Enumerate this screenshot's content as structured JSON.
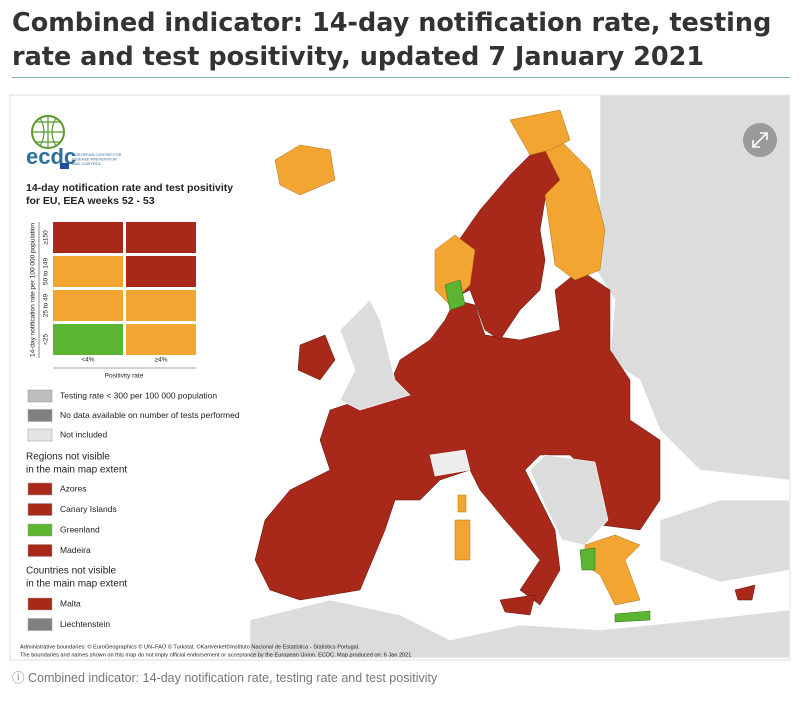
{
  "title": "Combined indicator: 14-day notification rate, testing rate and test positivity, updated 7 January 2021",
  "map": {
    "logo": {
      "name": "ecdc",
      "subtitle": [
        "EUROPEAN CENTRE FOR",
        "DISEASE PREVENTION",
        "AND CONTROL"
      ]
    },
    "legend_title": [
      "14-day notification rate and test positivity",
      "for EU, EEA weeks 52 - 53"
    ],
    "y_axis_label": "14-day notification rate per 100 000 population",
    "y_categories": [
      "≥150",
      "50 to 149",
      "25 to 49",
      "<25"
    ],
    "x_axis_label": "Positivity rate",
    "x_categories": [
      "<4%",
      "≥4%"
    ],
    "matrix_colors": [
      [
        "#a8281a",
        "#a8281a"
      ],
      [
        "#f2a531",
        "#a8281a"
      ],
      [
        "#f2a531",
        "#f2a531"
      ],
      [
        "#5cb531",
        "#f2a531"
      ]
    ],
    "other_legend": [
      {
        "label": "Testing rate < 300 per 100 000 population",
        "color": "#bdbdbd"
      },
      {
        "label": "No data available on number of tests performed",
        "color": "#7f7f7f"
      },
      {
        "label": "Not included",
        "color": "#e4e4e4"
      }
    ],
    "regions_heading": [
      "Regions not visible",
      "in the main map extent"
    ],
    "regions": [
      {
        "label": "Azores",
        "color": "#a8281a"
      },
      {
        "label": "Canary Islands",
        "color": "#a8281a"
      },
      {
        "label": "Greenland",
        "color": "#5cb531"
      },
      {
        "label": "Madeira",
        "color": "#a8281a"
      }
    ],
    "countries_heading": [
      "Countries not visible",
      "in the main map extent"
    ],
    "countries": [
      {
        "label": "Malta",
        "color": "#a8281a"
      },
      {
        "label": "Liechtenstein",
        "color": "#7f7f7f"
      }
    ],
    "footnote": [
      "Administrative boundaries: © EuroGeographics © UN–FAO © Turkstat. ©Kartverket©Instituto Nacional de Estatística - Statistics Portugal.",
      "The boundaries and names shown on this map do not imply official endorsement or acceptance by the European Union. ECDC. Map produced on: 6 Jan 2021"
    ]
  },
  "caption": "Combined indicator: 14-day notification rate, testing rate and test positivity"
}
